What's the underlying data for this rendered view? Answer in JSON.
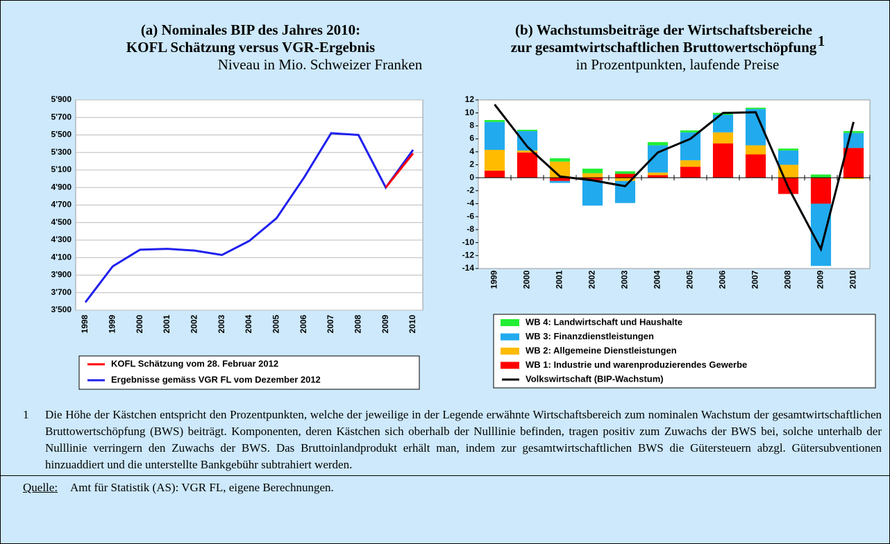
{
  "chart_data": [
    {
      "type": "line",
      "title": [
        "(a) Nominales BIP des Jahres 2010:",
        "KOFL Schätzung versus VGR-Ergebnis"
      ],
      "subtitle": "Niveau in Mio. Schweizer Franken",
      "categories": [
        "1998",
        "1999",
        "2000",
        "2001",
        "2002",
        "2003",
        "2004",
        "2005",
        "2006",
        "2007",
        "2008",
        "2009",
        "2010"
      ],
      "series": [
        {
          "name": "KOFL Schätzung vom 28. Februar 2012",
          "color": "#ff0000",
          "values": [
            null,
            null,
            null,
            null,
            null,
            null,
            null,
            null,
            null,
            null,
            null,
            4900,
            5290
          ]
        },
        {
          "name": "Ergebnisse gemäss VGR FL vom Dezember 2012",
          "color": "#2020ee",
          "values": [
            3590,
            4000,
            4190,
            4200,
            4180,
            4130,
            4290,
            4550,
            5010,
            5520,
            5500,
            4900,
            5330
          ]
        }
      ],
      "ylim": [
        3500,
        5900
      ],
      "yticks": [
        {
          "value": 3500,
          "label": "3'500"
        },
        {
          "value": 3700,
          "label": "3'700"
        },
        {
          "value": 3900,
          "label": "3'900"
        },
        {
          "value": 4100,
          "label": "4'100"
        },
        {
          "value": 4300,
          "label": "4'300"
        },
        {
          "value": 4500,
          "label": "4'500"
        },
        {
          "value": 4700,
          "label": "4'700"
        },
        {
          "value": 4900,
          "label": "4'900"
        },
        {
          "value": 5100,
          "label": "5'100"
        },
        {
          "value": 5300,
          "label": "5'300"
        },
        {
          "value": 5500,
          "label": "5'500"
        },
        {
          "value": 5700,
          "label": "5'700"
        },
        {
          "value": 5900,
          "label": "5'900"
        }
      ],
      "grid": true
    },
    {
      "type": "stacked-bar",
      "title": [
        "(b) Wachstumsbeiträge der Wirtschaftsbereiche",
        "zur gesamtwirtschaftlichen Bruttowertschöpfung"
      ],
      "title_note": "1",
      "subtitle": "in Prozentpunkten, laufende Preise",
      "categories": [
        "1999",
        "2000",
        "2001",
        "2002",
        "2003",
        "2004",
        "2005",
        "2006",
        "2007",
        "2008",
        "2009",
        "2010"
      ],
      "series": [
        {
          "name": "WB 4: Landwirtschaft und Haushalte",
          "color": "#22ee33",
          "values": [
            0.3,
            0.2,
            0.5,
            0.7,
            0.4,
            0.5,
            0.3,
            0.3,
            0.2,
            0.3,
            0.5,
            0.3
          ]
        },
        {
          "name": "WB 3: Finanzdienstleistungen",
          "color": "#22aaee",
          "values": [
            4.3,
            3.0,
            -0.3,
            -3.9,
            -3.4,
            4.2,
            4.3,
            2.7,
            5.6,
            2.2,
            -9.6,
            2.3
          ]
        },
        {
          "name": "WB 2: Allgemeine Dienstleistungen",
          "color": "#ffbb00",
          "values": [
            3.2,
            0.3,
            2.5,
            0.7,
            -0.5,
            0.4,
            1.0,
            1.7,
            1.4,
            2.0,
            0,
            -0.2
          ]
        },
        {
          "name": "WB 1: Industrie und warenproduzierendes Gewerbe",
          "color": "#ff0000",
          "values": [
            1.1,
            3.9,
            -0.5,
            -0.4,
            0.6,
            0.4,
            1.7,
            5.3,
            3.6,
            -2.5,
            -4.0,
            4.6
          ]
        },
        {
          "name": "Volkswirtschaft (BIP-Wachstum)",
          "color": "#000000",
          "kind": "line",
          "values": [
            11.3,
            4.8,
            0.2,
            -0.4,
            -1.3,
            3.9,
            6.0,
            10.0,
            10.1,
            -1.5,
            -11.0,
            8.6
          ]
        }
      ],
      "ylim": [
        -14,
        12
      ],
      "yticks": [
        -14,
        -12,
        -10,
        -8,
        -6,
        -4,
        -2,
        0,
        2,
        4,
        6,
        8,
        10,
        12
      ],
      "grid": false
    }
  ],
  "footnote": {
    "marker": "1",
    "text": "Die Höhe der Kästchen entspricht den Prozentpunkten, welche der jeweilige in der Legende erwähnte Wirtschaftsbereich zum nominalen Wachstum der gesamtwirtschaftlichen Bruttowertschöpfung (BWS) beiträgt. Komponenten, deren Kästchen sich oberhalb der Nulllinie befinden, tragen positiv zum Zuwachs der BWS bei, solche unterhalb der Nulllinie verringern den Zu­wachs der BWS. Das Bruttoinlandprodukt erhält man, indem zur gesamtwirtschaftlichen BWS die Gütersteuern abzgl. Güter­subventionen hinzuaddiert und die unterstellte Bankgebühr subtrahiert werden."
  },
  "source": {
    "label": "Quelle:",
    "text": "Amt für Statistik (AS): VGR FL, eigene Berechnungen."
  }
}
